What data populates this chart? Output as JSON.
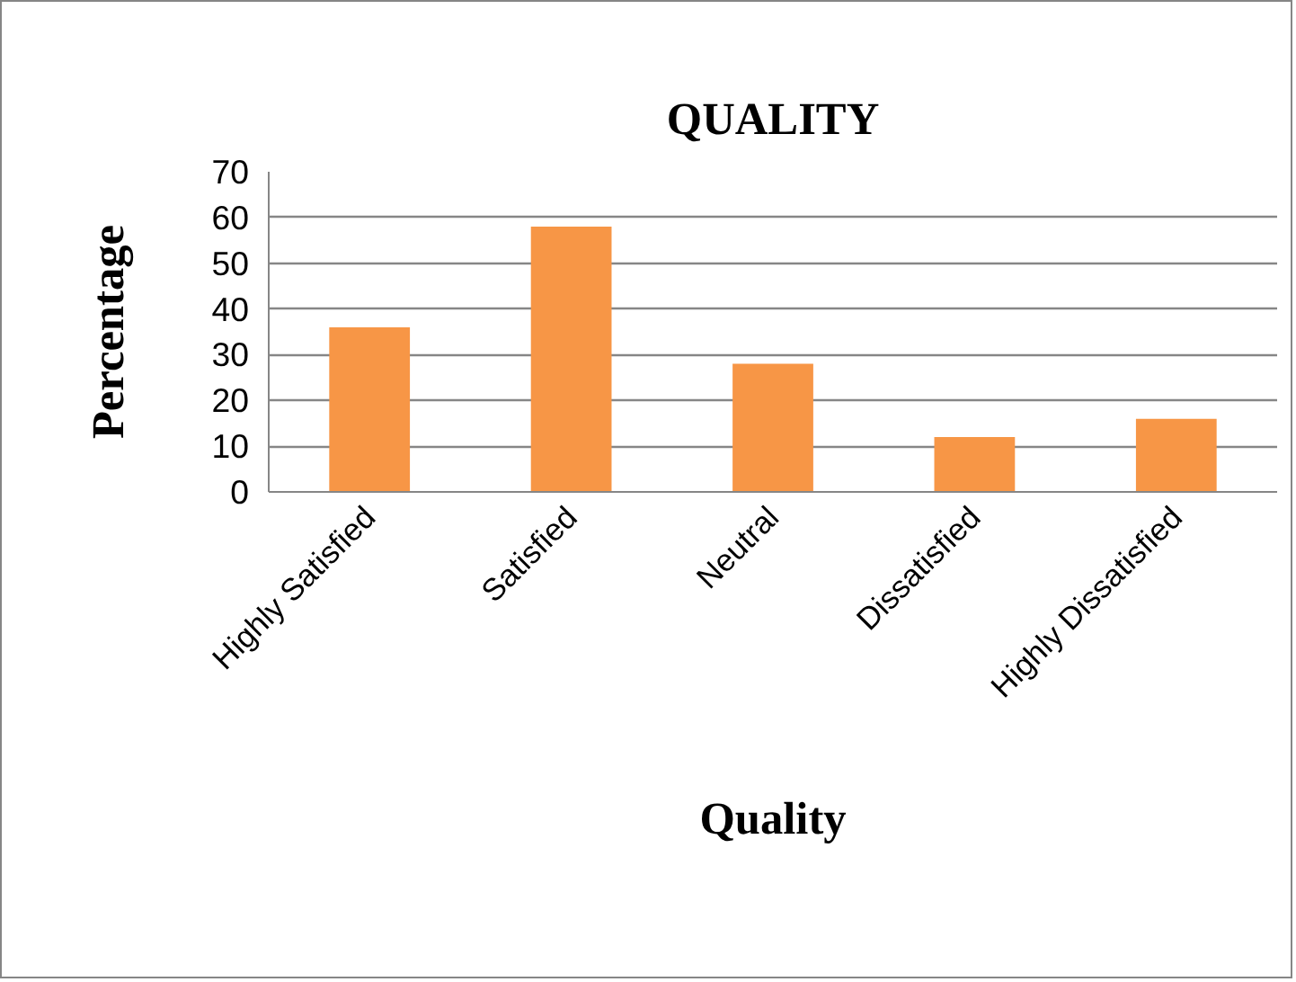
{
  "chart_data": {
    "type": "bar",
    "title": "QUALITY",
    "xlabel": "Quality",
    "ylabel": "Percentage",
    "categories": [
      "Highly Satisfied",
      "Satisfied",
      "Neutral",
      "Dissatisfied",
      "Highly Dissatisfied"
    ],
    "values": [
      36,
      58,
      28,
      12,
      16
    ],
    "color": "#f79646",
    "ylim": [
      0,
      70
    ],
    "yticks": [
      0,
      10,
      20,
      30,
      40,
      50,
      60,
      70
    ],
    "grid": "y"
  }
}
